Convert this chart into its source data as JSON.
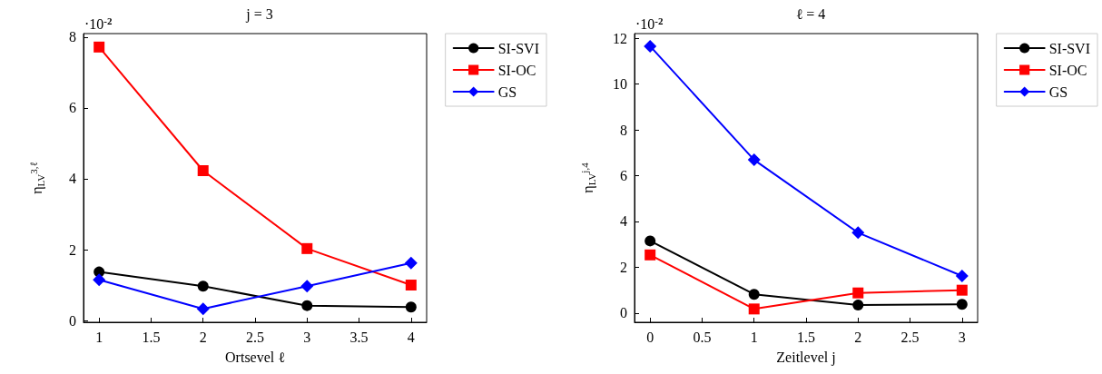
{
  "chart_data": [
    {
      "type": "line",
      "title": "j = 3",
      "xlabel": "Ortsevel ℓ",
      "ylabel": "η$_{LV}$$^{3,ℓ}$",
      "annotations": [
        "·10$^{-2}$"
      ],
      "x": [
        1,
        2,
        3,
        4
      ],
      "xlim": [
        0.85,
        4.15
      ],
      "xticks": [
        1,
        1.5,
        2,
        2.5,
        3,
        3.5,
        4
      ],
      "ylim": [
        -0.05,
        8.1
      ],
      "yticks": [
        0,
        2,
        4,
        6,
        8
      ],
      "grid": false,
      "legend": "top right",
      "line_style": "solid",
      "series": [
        {
          "name": "SI-SVI",
          "color": "#000000",
          "marker": "circle",
          "values": [
            1.37,
            0.97,
            0.42,
            0.38
          ]
        },
        {
          "name": "SI-OC",
          "color": "#ff0000",
          "marker": "square",
          "values": [
            7.72,
            4.23,
            2.03,
            1.0
          ]
        },
        {
          "name": "GS",
          "color": "#0000ff",
          "marker": "diamond",
          "values": [
            1.15,
            0.33,
            0.97,
            1.62
          ]
        }
      ]
    },
    {
      "type": "line",
      "title": "ℓ = 4",
      "xlabel": "Zeitlevel j",
      "ylabel": "η$_{LV}$$^{j,4}$",
      "annotations": [
        "·10$^{-2}$"
      ],
      "x": [
        0,
        1,
        2,
        3
      ],
      "xlim": [
        -0.15,
        3.15
      ],
      "xticks": [
        0,
        0.5,
        1,
        1.5,
        2,
        2.5,
        3
      ],
      "ylim": [
        -0.4,
        12.2
      ],
      "yticks": [
        0,
        2,
        4,
        6,
        8,
        10,
        12
      ],
      "grid": false,
      "legend": "top right",
      "line_style": "solid",
      "series": [
        {
          "name": "SI-SVI",
          "color": "#000000",
          "marker": "circle",
          "values": [
            3.15,
            0.82,
            0.35,
            0.38
          ]
        },
        {
          "name": "SI-OC",
          "color": "#ff0000",
          "marker": "square",
          "values": [
            2.54,
            0.18,
            0.88,
            1.0
          ]
        },
        {
          "name": "GS",
          "color": "#0000ff",
          "marker": "diamond",
          "values": [
            11.65,
            6.69,
            3.51,
            1.62
          ]
        }
      ]
    }
  ]
}
